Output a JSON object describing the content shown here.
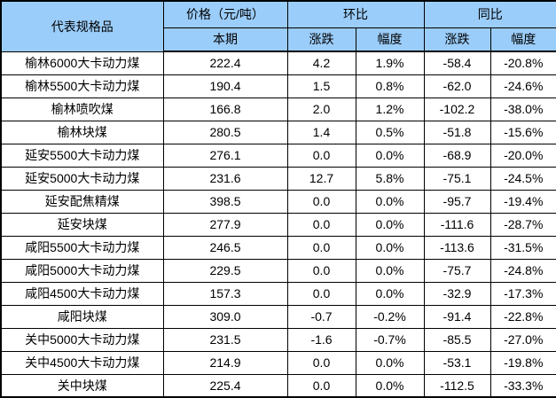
{
  "colors": {
    "header_bg": "#9bcdfa",
    "border": "#000000",
    "text": "#000000",
    "row_bg": "#ffffff"
  },
  "table": {
    "header": {
      "product": "代表规格品",
      "price_group": "价格（元/吨）",
      "price_current": "本期",
      "mom_group": "环比",
      "mom_change": "涨跌",
      "mom_rate": "幅度",
      "yoy_group": "同比",
      "yoy_change": "涨跌",
      "yoy_rate": "幅度"
    },
    "rows": [
      {
        "name": "榆林6000大卡动力煤",
        "price": "222.4",
        "mom_change": "4.2",
        "mom_rate": "1.9%",
        "yoy_change": "-58.4",
        "yoy_rate": "-20.8%"
      },
      {
        "name": "榆林5500大卡动力煤",
        "price": "190.4",
        "mom_change": "1.5",
        "mom_rate": "0.8%",
        "yoy_change": "-62.0",
        "yoy_rate": "-24.6%"
      },
      {
        "name": "榆林喷吹煤",
        "price": "166.8",
        "mom_change": "2.0",
        "mom_rate": "1.2%",
        "yoy_change": "-102.2",
        "yoy_rate": "-38.0%"
      },
      {
        "name": "榆林块煤",
        "price": "280.5",
        "mom_change": "1.4",
        "mom_rate": "0.5%",
        "yoy_change": "-51.8",
        "yoy_rate": "-15.6%"
      },
      {
        "name": "延安5500大卡动力煤",
        "price": "276.1",
        "mom_change": "0.0",
        "mom_rate": "0.0%",
        "yoy_change": "-68.9",
        "yoy_rate": "-20.0%"
      },
      {
        "name": "延安5000大卡动力煤",
        "price": "231.6",
        "mom_change": "12.7",
        "mom_rate": "5.8%",
        "yoy_change": "-75.1",
        "yoy_rate": "-24.5%"
      },
      {
        "name": "延安配焦精煤",
        "price": "398.5",
        "mom_change": "0.0",
        "mom_rate": "0.0%",
        "yoy_change": "-95.7",
        "yoy_rate": "-19.4%"
      },
      {
        "name": "延安块煤",
        "price": "277.9",
        "mom_change": "0.0",
        "mom_rate": "0.0%",
        "yoy_change": "-111.6",
        "yoy_rate": "-28.7%"
      },
      {
        "name": "咸阳5500大卡动力煤",
        "price": "246.5",
        "mom_change": "0.0",
        "mom_rate": "0.0%",
        "yoy_change": "-113.6",
        "yoy_rate": "-31.5%"
      },
      {
        "name": "咸阳5000大卡动力煤",
        "price": "229.5",
        "mom_change": "0.0",
        "mom_rate": "0.0%",
        "yoy_change": "-75.7",
        "yoy_rate": "-24.8%"
      },
      {
        "name": "咸阳4500大卡动力煤",
        "price": "157.3",
        "mom_change": "0.0",
        "mom_rate": "0.0%",
        "yoy_change": "-32.9",
        "yoy_rate": "-17.3%"
      },
      {
        "name": "咸阳块煤",
        "price": "309.0",
        "mom_change": "-0.7",
        "mom_rate": "-0.2%",
        "yoy_change": "-91.4",
        "yoy_rate": "-22.8%"
      },
      {
        "name": "关中5000大卡动力煤",
        "price": "231.5",
        "mom_change": "-1.6",
        "mom_rate": "-0.7%",
        "yoy_change": "-85.5",
        "yoy_rate": "-27.0%"
      },
      {
        "name": "关中4500大卡动力煤",
        "price": "214.9",
        "mom_change": "0.0",
        "mom_rate": "0.0%",
        "yoy_change": "-53.1",
        "yoy_rate": "-19.8%"
      },
      {
        "name": "关中块煤",
        "price": "225.4",
        "mom_change": "0.0",
        "mom_rate": "0.0%",
        "yoy_change": "-112.5",
        "yoy_rate": "-33.3%"
      }
    ]
  }
}
